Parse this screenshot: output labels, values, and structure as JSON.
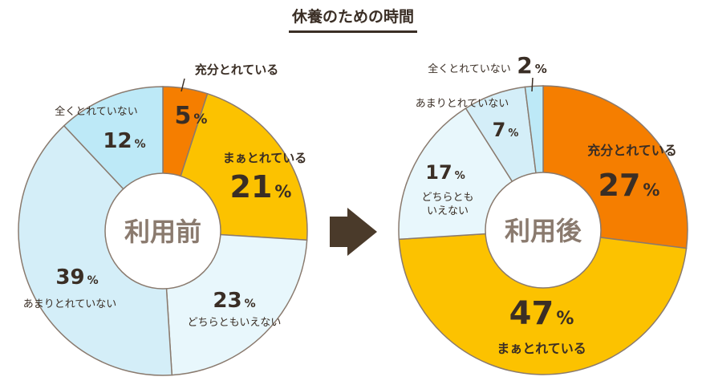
{
  "title": "休養のための時間",
  "colors": {
    "stroke": "#8a7a6e",
    "text": "#3a2e25",
    "center_text": "#8a7a6e",
    "arrow": "#4a3a2a"
  },
  "chart_data": [
    {
      "type": "pie",
      "center_label": "利用前",
      "slices": [
        {
          "label": "充分とれている",
          "value": 5,
          "color": "#f57e00"
        },
        {
          "label": "まぁとれている",
          "value": 21,
          "color": "#fcc200"
        },
        {
          "label": "どちらともいえない",
          "value": 23,
          "color": "#e8f7fc"
        },
        {
          "label": "あまりとれていない",
          "value": 39,
          "color": "#d4eef8"
        },
        {
          "label": "全くとれていない",
          "value": 12,
          "color": "#bde9f7"
        }
      ]
    },
    {
      "type": "pie",
      "center_label": "利用後",
      "slices": [
        {
          "label": "充分とれている",
          "value": 27,
          "color": "#f57e00"
        },
        {
          "label": "まぁとれている",
          "value": 47,
          "color": "#fcc200"
        },
        {
          "label": "どちらともいえない",
          "value": 17,
          "color": "#e8f7fc"
        },
        {
          "label": "あまりとれていない",
          "value": 7,
          "color": "#d4eef8"
        },
        {
          "label": "全くとれていない",
          "value": 2,
          "color": "#bde9f7"
        }
      ]
    }
  ]
}
